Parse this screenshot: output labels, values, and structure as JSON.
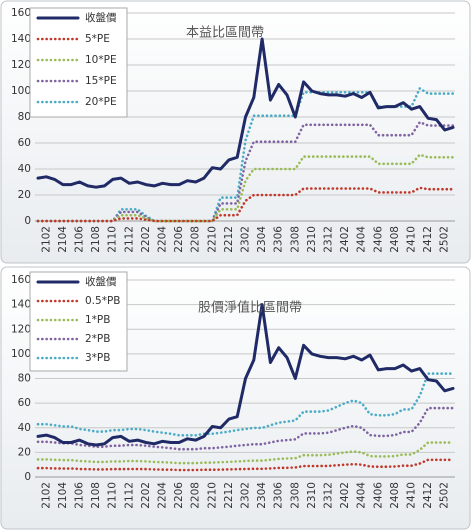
{
  "chart_data": [
    {
      "type": "line",
      "title": "本益比區間帶",
      "categories": [
        null,
        "2102",
        null,
        "2104",
        null,
        "2106",
        null,
        "2108",
        null,
        "2110",
        null,
        "2112",
        null,
        "2202",
        null,
        "2204",
        null,
        "2206",
        null,
        "2208",
        null,
        "2210",
        null,
        "2212",
        null,
        "2302",
        null,
        "2304",
        null,
        "2306",
        null,
        "2308",
        null,
        "2310",
        null,
        "2312",
        null,
        "2402",
        null,
        "2404",
        null,
        "2406",
        null,
        "2408",
        null,
        "2410",
        null,
        "2412",
        null,
        "2502",
        null
      ],
      "ylim": [
        0,
        160
      ],
      "yticks": [
        0,
        20,
        40,
        60,
        80,
        100,
        120,
        140,
        160
      ],
      "grid": true,
      "legend": "top-left",
      "series": [
        {
          "name": "收盤價",
          "color": "#1f2a66",
          "style": "solid",
          "values": [
            33,
            34,
            32,
            28,
            28,
            30,
            27,
            26,
            27,
            32,
            33,
            29,
            30,
            28,
            27,
            29,
            28,
            28,
            31,
            30,
            33,
            41,
            40,
            47,
            49,
            80,
            95,
            140,
            93,
            105,
            97,
            80,
            107,
            100,
            98,
            97,
            97,
            96,
            98,
            95,
            99,
            87,
            88,
            88,
            91,
            86,
            88,
            79,
            78,
            70,
            72
          ]
        },
        {
          "name": "5*PE",
          "color": "#c0392b",
          "style": "dotted",
          "values": [
            0,
            0,
            0,
            0,
            0,
            0,
            0,
            0,
            0,
            0,
            2,
            2,
            2,
            1,
            0,
            0,
            0,
            0,
            0,
            0,
            0,
            0,
            4.5,
            4.5,
            4.5,
            15.5,
            20,
            20,
            20,
            20,
            20,
            20,
            25,
            25,
            25,
            25,
            25,
            25,
            25,
            25,
            25,
            22,
            22,
            22,
            22,
            22,
            25.5,
            24.5,
            24.5,
            24.5,
            24.5
          ]
        },
        {
          "name": "10*PE",
          "color": "#9bbb59",
          "style": "dotted",
          "values": [
            0,
            0,
            0,
            0,
            0,
            0,
            0,
            0,
            0,
            0,
            4.5,
            4.5,
            4.5,
            2,
            0,
            0,
            0,
            0,
            0,
            0,
            0,
            0,
            9,
            9,
            9,
            31,
            40,
            40,
            40,
            40,
            40,
            40,
            49.5,
            49.5,
            49.5,
            49.5,
            49.5,
            49.5,
            49.5,
            49.5,
            49.5,
            44,
            44,
            44,
            44,
            44,
            51,
            49,
            49,
            49,
            49
          ]
        },
        {
          "name": "15*PE",
          "color": "#8064a2",
          "style": "dotted",
          "values": [
            0,
            0,
            0,
            0,
            0,
            0,
            0,
            0,
            0,
            0,
            7,
            7,
            7,
            3,
            0,
            0,
            0,
            0,
            0,
            0,
            0,
            0,
            13.5,
            13.5,
            13.5,
            46,
            61,
            61,
            61,
            61,
            61,
            61,
            74,
            74,
            74,
            74,
            74,
            74,
            74,
            74,
            74,
            66,
            66,
            66,
            66,
            66,
            76,
            73.5,
            73.5,
            73.5,
            73.5
          ]
        },
        {
          "name": "20*PE",
          "color": "#4bacc6",
          "style": "dotted",
          "values": [
            0,
            0,
            0,
            0,
            0,
            0,
            0,
            0,
            0,
            0,
            9,
            9,
            9,
            4,
            0,
            0,
            0,
            0,
            0,
            0,
            0,
            0,
            18,
            18,
            18,
            62,
            81,
            81,
            81,
            81,
            81,
            81,
            99,
            99,
            99,
            99,
            99,
            99,
            99,
            99,
            99,
            88,
            88,
            88,
            88,
            88,
            102,
            98,
            98,
            98,
            98
          ]
        }
      ]
    },
    {
      "type": "line",
      "title": "股價淨值比區間帶",
      "categories": [
        null,
        "2102",
        null,
        "2104",
        null,
        "2106",
        null,
        "2108",
        null,
        "2110",
        null,
        "2112",
        null,
        "2202",
        null,
        "2204",
        null,
        "2206",
        null,
        "2208",
        null,
        "2210",
        null,
        "2212",
        null,
        "2302",
        null,
        "2304",
        null,
        "2306",
        null,
        "2308",
        null,
        "2310",
        null,
        "2312",
        null,
        "2402",
        null,
        "2404",
        null,
        "2406",
        null,
        "2408",
        null,
        "2410",
        null,
        "2412",
        null,
        "2502",
        null
      ],
      "ylim": [
        0,
        160
      ],
      "yticks": [
        0,
        20,
        40,
        60,
        80,
        100,
        120,
        140,
        160
      ],
      "grid": true,
      "legend": "top-left",
      "series": [
        {
          "name": "收盤價",
          "color": "#1f2a66",
          "style": "solid",
          "values": [
            33,
            34,
            32,
            28,
            28,
            30,
            27,
            26,
            27,
            32,
            33,
            29,
            30,
            28,
            27,
            29,
            28,
            28,
            31,
            30,
            33,
            41,
            40,
            47,
            49,
            80,
            95,
            140,
            93,
            105,
            97,
            80,
            107,
            100,
            98,
            97,
            97,
            96,
            98,
            95,
            99,
            87,
            88,
            88,
            91,
            86,
            88,
            79,
            78,
            70,
            72
          ]
        },
        {
          "name": "0.5*PB",
          "color": "#c0392b",
          "style": "dotted",
          "values": [
            7.2,
            7.2,
            7,
            6.9,
            6.9,
            6.5,
            6.4,
            6.2,
            6.2,
            6.4,
            6.4,
            6.5,
            6.5,
            6.4,
            6.2,
            6,
            5.9,
            5.7,
            5.7,
            5.7,
            5.9,
            5.9,
            6,
            6.2,
            6.4,
            6.5,
            6.7,
            6.7,
            7,
            7.4,
            7.5,
            7.7,
            8.9,
            8.9,
            8.9,
            9,
            9.5,
            10,
            10.4,
            10,
            8.5,
            8.4,
            8.4,
            8.5,
            9.2,
            9.2,
            11,
            14,
            14,
            14,
            14
          ]
        },
        {
          "name": "1*PB",
          "color": "#9bbb59",
          "style": "dotted",
          "values": [
            14.3,
            14.3,
            14,
            13.7,
            13.7,
            13,
            12.7,
            12.3,
            12.3,
            12.7,
            12.7,
            13,
            13,
            12.7,
            12.3,
            12,
            11.7,
            11.3,
            11.3,
            11.3,
            11.7,
            11.7,
            12,
            12.3,
            12.7,
            13,
            13.3,
            13.3,
            14,
            14.7,
            15,
            15.3,
            17.7,
            17.7,
            17.7,
            18,
            19,
            20,
            20.7,
            20,
            17,
            16.7,
            16.7,
            17,
            18.3,
            18.3,
            22,
            28,
            28,
            28,
            28
          ]
        },
        {
          "name": "2*PB",
          "color": "#8064a2",
          "style": "dotted",
          "values": [
            28.6,
            28.6,
            28,
            27.4,
            27.4,
            26,
            25.4,
            24.6,
            24.6,
            25.4,
            25.4,
            26,
            26,
            25.4,
            24.6,
            24,
            23.4,
            22.6,
            22.6,
            22.6,
            23.4,
            23.4,
            24,
            24.6,
            25.4,
            26,
            26.6,
            26.6,
            28,
            29.4,
            30,
            30.6,
            35.4,
            35.4,
            35.4,
            36,
            38,
            40,
            41.4,
            40,
            34,
            33.4,
            33.4,
            34,
            36.6,
            36.6,
            44,
            56,
            56,
            56,
            56
          ]
        },
        {
          "name": "3*PB",
          "color": "#4bacc6",
          "style": "dotted",
          "values": [
            42.9,
            42.9,
            42,
            41.1,
            41.1,
            39,
            38.1,
            36.9,
            36.9,
            38.1,
            38.1,
            39,
            39,
            38.1,
            36.9,
            36,
            35.1,
            33.9,
            33.9,
            33.9,
            35.1,
            35.1,
            36,
            36.9,
            38.1,
            39,
            39.9,
            39.9,
            42,
            44.1,
            45,
            45.9,
            53.1,
            53.1,
            53.1,
            54,
            57,
            60,
            62.1,
            60,
            51,
            50.1,
            50.1,
            51,
            54.9,
            54.9,
            66,
            84,
            84,
            84,
            84
          ]
        }
      ]
    }
  ]
}
